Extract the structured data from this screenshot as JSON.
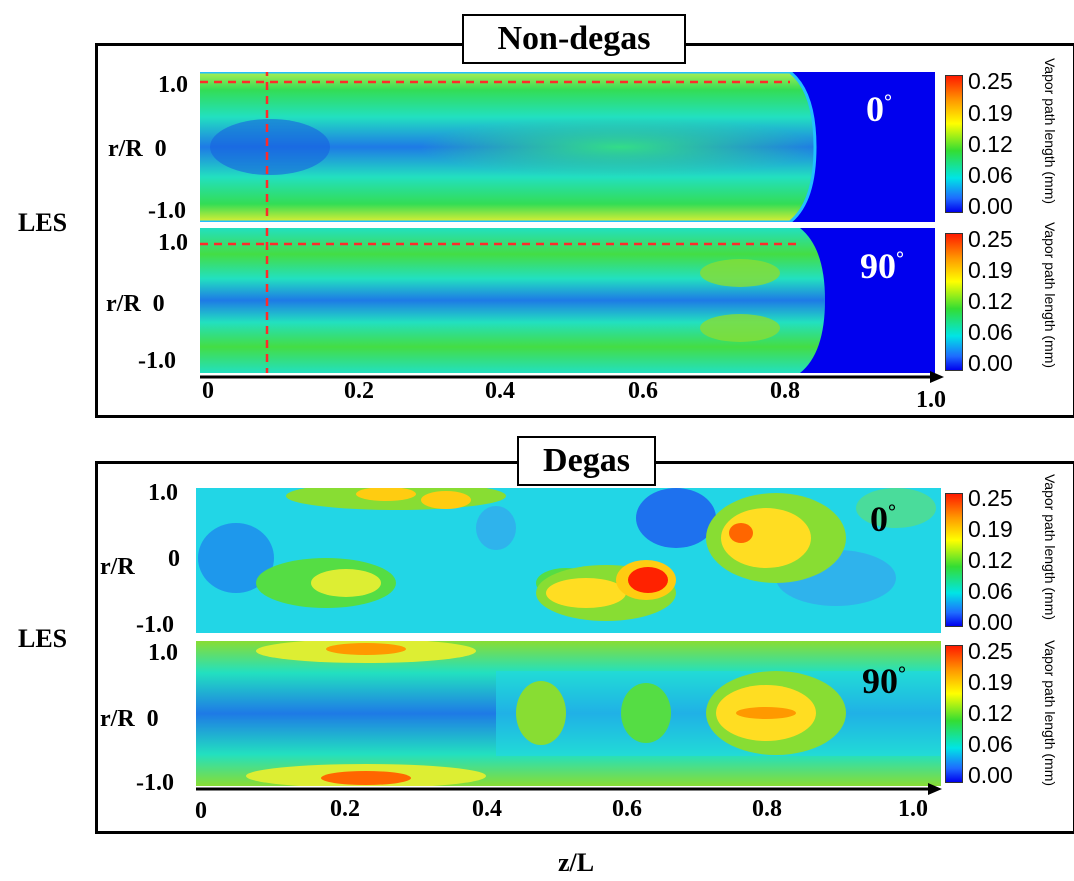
{
  "top": {
    "title": "Non-degas",
    "side_label": "LES",
    "panels": [
      {
        "angle": "0",
        "y_ticks": [
          "1.0",
          "r/R  0",
          "-1.0"
        ]
      },
      {
        "angle": "90",
        "y_ticks": [
          "1.0",
          "r/R  0",
          "-1.0"
        ]
      }
    ],
    "x_ticks": [
      "0",
      "0.2",
      "0.4",
      "0.6",
      "0.8",
      "1.0"
    ]
  },
  "bottom": {
    "title": "Degas",
    "side_label": "LES",
    "panels": [
      {
        "angle": "0",
        "y_ticks": [
          "1.0",
          "r/R",
          "0",
          "-1.0"
        ]
      },
      {
        "angle": "90",
        "y_ticks": [
          "1.0",
          "r/R  0",
          "-1.0"
        ]
      }
    ],
    "x_ticks": [
      "0",
      "0.2",
      "0.4",
      "0.6",
      "0.8",
      "1.0"
    ]
  },
  "colorbar": {
    "ticks": [
      "0.25",
      "0.19",
      "0.12",
      "0.06",
      "0.00"
    ],
    "unit_label": "Vapor path length (mm)",
    "colors": [
      "#ff1a00",
      "#ffff00",
      "#33dd33",
      "#00e5e5",
      "#0000ee"
    ]
  },
  "degree_symbol": "°",
  "x_axis_label": "z/L"
}
